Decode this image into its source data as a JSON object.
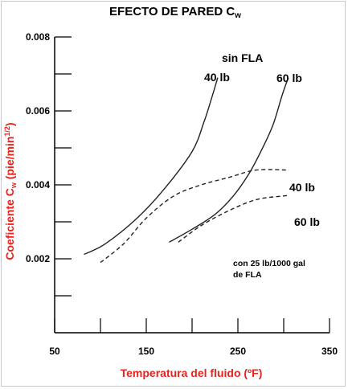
{
  "chart_data": {
    "type": "line",
    "title": "EFECTO  DE PARED C",
    "title_subscript": "w",
    "xlabel": "Temperatura del fluido (ºF)",
    "ylabel_main": "Coeficiente C",
    "ylabel_sub": "w",
    "ylabel_units": " (pie/min",
    "ylabel_exp": "1/2",
    "ylabel_close": ")",
    "xlim": [
      50,
      350
    ],
    "ylim": [
      0,
      0.008
    ],
    "x_ticks": [
      {
        "value": 50,
        "label": "50"
      },
      {
        "value": 150,
        "label": "150"
      },
      {
        "value": 250,
        "label": "250"
      },
      {
        "value": 350,
        "label": "350"
      }
    ],
    "y_ticks": [
      {
        "value": 0.002,
        "label": "0.002"
      },
      {
        "value": 0.004,
        "label": "0.004"
      },
      {
        "value": 0.006,
        "label": "0.006"
      },
      {
        "value": 0.008,
        "label": "0.008"
      }
    ],
    "grid": false,
    "annotations": {
      "sin_fla": "sin FLA",
      "solid_40": "40 lb",
      "solid_60": "60 lb",
      "dashed_40": "40 lb",
      "dashed_60": "60 lb",
      "con_fla_line1": "con 25 lb/1000 gal",
      "con_fla_line2": "de FLA"
    },
    "series": [
      {
        "style": "solid",
        "x": [
          82,
          105,
          140,
          170,
          200,
          213,
          222,
          228
        ],
        "y": [
          0.00212,
          0.0024,
          0.0031,
          0.0039,
          0.0049,
          0.0057,
          0.0064,
          0.0069
        ]
      },
      {
        "style": "solid",
        "x": [
          175,
          200,
          225,
          245,
          262,
          275,
          288,
          298,
          305
        ],
        "y": [
          0.00245,
          0.0028,
          0.0032,
          0.0037,
          0.0043,
          0.0049,
          0.0056,
          0.0064,
          0.0069
        ]
      },
      {
        "style": "dashed",
        "x": [
          100,
          125,
          150,
          180,
          210,
          240,
          270,
          305
        ],
        "y": [
          0.0019,
          0.0024,
          0.0031,
          0.0037,
          0.004,
          0.0042,
          0.0044,
          0.0044
        ]
      },
      {
        "style": "dashed",
        "x": [
          185,
          210,
          240,
          270,
          300,
          305
        ],
        "y": [
          0.00245,
          0.0029,
          0.0033,
          0.0036,
          0.0037,
          0.0037
        ]
      }
    ]
  }
}
